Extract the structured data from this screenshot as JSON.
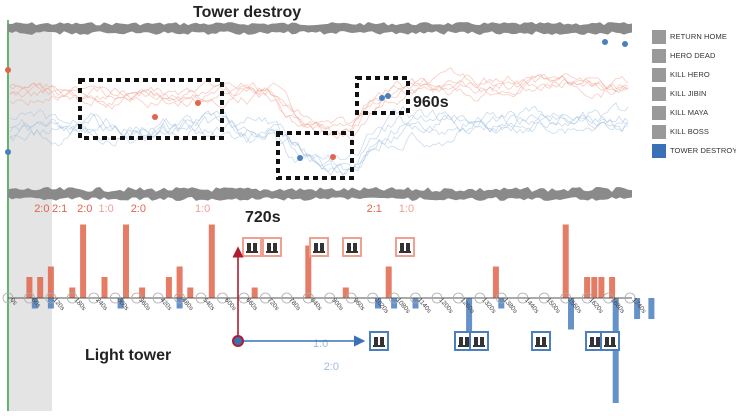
{
  "colors": {
    "red": "#e0654a",
    "red_light": "#f0a090",
    "blue": "#4a7fc0",
    "blue_light": "#9fbde0",
    "gray_band": "#8a8a8a",
    "legend_gray": "#999999",
    "legend_blue": "#3a70b5",
    "green_axis": "#3aa34a",
    "arrow_red": "#b01c2e",
    "arrow_blue": "#3a70b5"
  },
  "annotations": {
    "top_title": "Tower destroy",
    "label_960": "960s",
    "label_720": "720s",
    "light_tower": "Light tower"
  },
  "legend": [
    {
      "label": "RETURN HOME",
      "color": "#999999"
    },
    {
      "label": "HERO DEAD",
      "color": "#999999"
    },
    {
      "label": "KILL HERO",
      "color": "#999999"
    },
    {
      "label": "KILL JIBIN",
      "color": "#999999"
    },
    {
      "label": "KILL MAYA",
      "color": "#999999"
    },
    {
      "label": "KILL BOSS",
      "color": "#999999"
    },
    {
      "label": "TOWER DESTROY",
      "color": "#3a70b5"
    }
  ],
  "chart_data": {
    "type": "bar",
    "title": "",
    "xlabel": "",
    "ylabel": "",
    "x_ticks": [
      "0s",
      "60s",
      "120s",
      "180s",
      "240s",
      "300s",
      "360s",
      "420s",
      "480s",
      "540s",
      "600s",
      "660s",
      "720s",
      "780s",
      "840s",
      "900s",
      "960s",
      "1020s",
      "1080s",
      "1140s",
      "1200s",
      "1260s",
      "1320s",
      "1380s",
      "1440s",
      "1500s",
      "1560s",
      "1620s",
      "1680s",
      "1740s"
    ],
    "xlim": [
      0,
      1740
    ],
    "top_panel": {
      "type": "line",
      "red_series_count": 5,
      "blue_series_count": 5
    },
    "bottom_panel": {
      "ylim": [
        -12,
        10
      ],
      "red_bars": [
        {
          "t": 60,
          "value": 2
        },
        {
          "t": 90,
          "value": 2
        },
        {
          "t": 120,
          "value": 3
        },
        {
          "t": 180,
          "value": 1
        },
        {
          "t": 210,
          "value": 7
        },
        {
          "t": 270,
          "value": 2
        },
        {
          "t": 330,
          "value": 7
        },
        {
          "t": 375,
          "value": 1
        },
        {
          "t": 450,
          "value": 2
        },
        {
          "t": 480,
          "value": 3
        },
        {
          "t": 510,
          "value": 1
        },
        {
          "t": 570,
          "value": 7
        },
        {
          "t": 690,
          "value": 1
        },
        {
          "t": 840,
          "value": 5
        },
        {
          "t": 945,
          "value": 1
        },
        {
          "t": 1065,
          "value": 3
        },
        {
          "t": 1365,
          "value": 3
        },
        {
          "t": 1560,
          "value": 7
        },
        {
          "t": 1620,
          "value": 2
        },
        {
          "t": 1640,
          "value": 2
        },
        {
          "t": 1660,
          "value": 2
        },
        {
          "t": 1690,
          "value": 2
        }
      ],
      "blue_bars": [
        {
          "t": 75,
          "value": -1
        },
        {
          "t": 120,
          "value": -1
        },
        {
          "t": 315,
          "value": -1
        },
        {
          "t": 480,
          "value": -1
        },
        {
          "t": 1035,
          "value": -1
        },
        {
          "t": 1080,
          "value": -1
        },
        {
          "t": 1140,
          "value": -1
        },
        {
          "t": 1290,
          "value": -5
        },
        {
          "t": 1380,
          "value": -1
        },
        {
          "t": 1575,
          "value": -3
        },
        {
          "t": 1700,
          "value": -10
        },
        {
          "t": 1760,
          "value": -2
        },
        {
          "t": 1800,
          "value": -2
        }
      ],
      "score_labels": [
        {
          "text": "2:0",
          "t": 90,
          "color": "#e0654a",
          "side": "top"
        },
        {
          "text": "2:1",
          "t": 140,
          "color": "#e0654a",
          "side": "top"
        },
        {
          "text": "2:0",
          "t": 210,
          "color": "#e0654a",
          "side": "top"
        },
        {
          "text": "1:0",
          "t": 270,
          "color": "#f0a090",
          "side": "top"
        },
        {
          "text": "2:0",
          "t": 360,
          "color": "#e0654a",
          "side": "top"
        },
        {
          "text": "1:0",
          "t": 540,
          "color": "#f0a090",
          "side": "top"
        },
        {
          "text": "2:1",
          "t": 1020,
          "color": "#e0654a",
          "side": "top"
        },
        {
          "text": "1:0",
          "t": 1110,
          "color": "#f0a090",
          "side": "top"
        },
        {
          "text": "1:0",
          "t": 870,
          "color": "#9fbde0",
          "side": "bottom"
        },
        {
          "text": "2:0",
          "t": 900,
          "color": "#9fbde0",
          "side": "bottom"
        }
      ]
    }
  }
}
